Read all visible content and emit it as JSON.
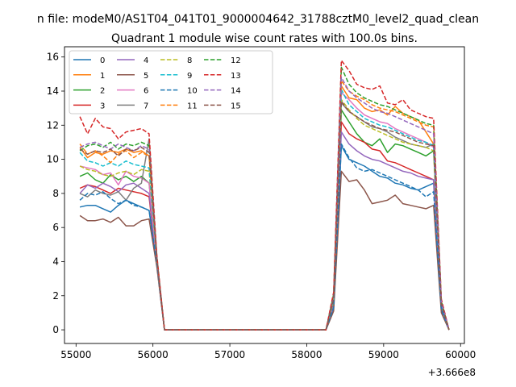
{
  "chart_data": {
    "type": "line",
    "suptitle": "n file: modeM0/AS1T04_041T01_9000004642_31788cztM0_level2_quad_clean",
    "title": "Quadrant 1 module wise count rates with 100.0s bins.",
    "xlabel": "",
    "ylabel": "",
    "x_offset_label": "+3.666e8",
    "xlim": [
      54850,
      60050
    ],
    "ylim": [
      -0.8,
      16.6
    ],
    "x_ticks": [
      55000,
      56000,
      57000,
      58000,
      59000,
      60000
    ],
    "y_ticks": [
      0,
      2,
      4,
      6,
      8,
      10,
      12,
      14,
      16
    ],
    "grid": false,
    "legend_position": "top-left",
    "x": [
      55050,
      55150,
      55250,
      55350,
      55450,
      55550,
      55650,
      55750,
      55850,
      55950,
      56050,
      56150,
      56250,
      56350,
      56450,
      56550,
      56650,
      56750,
      56850,
      56950,
      57050,
      57150,
      57250,
      57350,
      57450,
      57550,
      57650,
      57750,
      57850,
      57950,
      58050,
      58150,
      58250,
      58350,
      58450,
      58550,
      58650,
      58750,
      58850,
      58950,
      59050,
      59150,
      59250,
      59350,
      59450,
      59550,
      59650,
      59750,
      59850
    ],
    "series": [
      {
        "name": "0",
        "color": "#1f77b4",
        "dash": "solid",
        "values": [
          7.2,
          7.3,
          7.3,
          7.1,
          6.9,
          7.3,
          7.6,
          7.4,
          7.2,
          7.0,
          4.0,
          0,
          0,
          0,
          0,
          0,
          0,
          0,
          0,
          0,
          0,
          0,
          0,
          0,
          0,
          0,
          0,
          0,
          0,
          0,
          0,
          0,
          0,
          1.3,
          10.8,
          10.0,
          9.8,
          9.6,
          9.3,
          9.0,
          8.9,
          8.6,
          8.5,
          8.3,
          8.2,
          8.4,
          8.6,
          1.2,
          0
        ]
      },
      {
        "name": "1",
        "color": "#ff7f0e",
        "dash": "solid",
        "values": [
          10.7,
          10.1,
          10.4,
          10.3,
          10.5,
          10.4,
          10.6,
          10.4,
          10.5,
          10.2,
          4.1,
          0,
          0,
          0,
          0,
          0,
          0,
          0,
          0,
          0,
          0,
          0,
          0,
          0,
          0,
          0,
          0,
          0,
          0,
          0,
          0,
          0,
          0,
          1.9,
          14.3,
          13.6,
          13.5,
          13.0,
          12.8,
          12.9,
          12.6,
          13.1,
          12.7,
          12.5,
          12.3,
          11.6,
          10.9,
          1.6,
          0
        ]
      },
      {
        "name": "2",
        "color": "#2ca02c",
        "dash": "solid",
        "values": [
          9.0,
          9.2,
          8.8,
          8.6,
          9.1,
          8.8,
          9.0,
          8.7,
          9.0,
          8.6,
          4.0,
          0,
          0,
          0,
          0,
          0,
          0,
          0,
          0,
          0,
          0,
          0,
          0,
          0,
          0,
          0,
          0,
          0,
          0,
          0,
          0,
          0,
          0,
          1.6,
          12.9,
          12.2,
          11.5,
          11.0,
          10.8,
          11.2,
          10.4,
          10.9,
          10.8,
          10.6,
          10.4,
          10.2,
          10.5,
          1.4,
          0
        ]
      },
      {
        "name": "3",
        "color": "#d62728",
        "dash": "solid",
        "values": [
          8.3,
          8.5,
          8.4,
          8.2,
          8.0,
          8.3,
          8.2,
          8.1,
          8.0,
          7.8,
          3.8,
          0,
          0,
          0,
          0,
          0,
          0,
          0,
          0,
          0,
          0,
          0,
          0,
          0,
          0,
          0,
          0,
          0,
          0,
          0,
          0,
          0,
          0,
          1.5,
          12.2,
          11.5,
          11.2,
          11.0,
          10.6,
          10.5,
          9.9,
          9.8,
          9.6,
          9.4,
          9.2,
          9.0,
          8.8,
          1.3,
          0
        ]
      },
      {
        "name": "4",
        "color": "#9467bd",
        "dash": "solid",
        "values": [
          8.0,
          8.5,
          8.3,
          8.6,
          8.4,
          8.1,
          8.5,
          8.6,
          8.3,
          8.0,
          3.9,
          0,
          0,
          0,
          0,
          0,
          0,
          0,
          0,
          0,
          0,
          0,
          0,
          0,
          0,
          0,
          0,
          0,
          0,
          0,
          0,
          0,
          0,
          1.4,
          11.6,
          10.9,
          10.5,
          10.2,
          10.0,
          9.9,
          9.7,
          9.5,
          9.3,
          9.2,
          9.0,
          8.9,
          8.8,
          1.2,
          0
        ]
      },
      {
        "name": "5",
        "color": "#8c564b",
        "dash": "solid",
        "values": [
          6.7,
          6.4,
          6.4,
          6.5,
          6.3,
          6.6,
          6.1,
          6.1,
          6.4,
          6.5,
          3.7,
          0,
          0,
          0,
          0,
          0,
          0,
          0,
          0,
          0,
          0,
          0,
          0,
          0,
          0,
          0,
          0,
          0,
          0,
          0,
          0,
          0,
          0,
          1.1,
          9.3,
          8.7,
          8.8,
          8.2,
          7.4,
          7.5,
          7.6,
          7.9,
          7.4,
          7.3,
          7.2,
          7.1,
          7.3,
          1.0,
          0
        ]
      },
      {
        "name": "6",
        "color": "#e377c2",
        "dash": "solid",
        "values": [
          9.6,
          9.5,
          9.4,
          9.1,
          9.2,
          8.5,
          9.3,
          9.0,
          8.9,
          8.6,
          4.0,
          0,
          0,
          0,
          0,
          0,
          0,
          0,
          0,
          0,
          0,
          0,
          0,
          0,
          0,
          0,
          0,
          0,
          0,
          0,
          0,
          0,
          0,
          1.8,
          13.9,
          13.5,
          13.0,
          12.6,
          12.4,
          12.2,
          12.1,
          11.8,
          11.6,
          11.4,
          11.2,
          11.0,
          10.7,
          1.5,
          0
        ]
      },
      {
        "name": "7",
        "color": "#7f7f7f",
        "dash": "solid",
        "values": [
          8.0,
          7.8,
          8.2,
          8.0,
          7.9,
          8.1,
          7.6,
          8.3,
          8.6,
          11.2,
          4.2,
          0,
          0,
          0,
          0,
          0,
          0,
          0,
          0,
          0,
          0,
          0,
          0,
          0,
          0,
          0,
          0,
          0,
          0,
          0,
          0,
          0,
          0,
          1.7,
          13.3,
          12.8,
          12.5,
          12.2,
          11.9,
          11.8,
          11.6,
          11.3,
          11.1,
          10.9,
          10.8,
          10.7,
          10.9,
          1.5,
          0
        ]
      },
      {
        "name": "8",
        "color": "#bcbd22",
        "dash": "dashed",
        "values": [
          9.6,
          9.4,
          9.3,
          9.1,
          9.0,
          9.2,
          9.3,
          9.1,
          9.4,
          9.3,
          4.1,
          0,
          0,
          0,
          0,
          0,
          0,
          0,
          0,
          0,
          0,
          0,
          0,
          0,
          0,
          0,
          0,
          0,
          0,
          0,
          0,
          0,
          0,
          1.7,
          13.5,
          12.9,
          12.4,
          12.0,
          11.8,
          11.6,
          11.4,
          11.2,
          11.0,
          10.9,
          10.8,
          10.7,
          10.5,
          1.4,
          0
        ]
      },
      {
        "name": "9",
        "color": "#17becf",
        "dash": "dashed",
        "values": [
          10.4,
          9.9,
          9.8,
          9.6,
          9.8,
          9.6,
          9.9,
          9.7,
          9.6,
          9.5,
          4.1,
          0,
          0,
          0,
          0,
          0,
          0,
          0,
          0,
          0,
          0,
          0,
          0,
          0,
          0,
          0,
          0,
          0,
          0,
          0,
          0,
          0,
          0,
          1.8,
          14.1,
          13.2,
          12.8,
          12.4,
          12.2,
          12.0,
          11.9,
          11.7,
          11.5,
          11.3,
          11.1,
          11.0,
          10.8,
          1.4,
          0
        ]
      },
      {
        "name": "10",
        "color": "#1f77b4",
        "dash": "dashed",
        "values": [
          7.6,
          8.0,
          7.9,
          8.1,
          7.7,
          7.4,
          7.6,
          7.3,
          7.2,
          7.0,
          3.9,
          0,
          0,
          0,
          0,
          0,
          0,
          0,
          0,
          0,
          0,
          0,
          0,
          0,
          0,
          0,
          0,
          0,
          0,
          0,
          0,
          0,
          0,
          1.3,
          10.9,
          10.1,
          9.5,
          9.3,
          9.4,
          9.2,
          9.0,
          8.8,
          8.6,
          8.4,
          8.2,
          7.8,
          8.1,
          1.2,
          0
        ]
      },
      {
        "name": "11",
        "color": "#ff7f0e",
        "dash": "dashed",
        "values": [
          10.9,
          10.3,
          10.5,
          10.2,
          9.8,
          10.3,
          10.5,
          10.1,
          10.4,
          10.2,
          4.2,
          0,
          0,
          0,
          0,
          0,
          0,
          0,
          0,
          0,
          0,
          0,
          0,
          0,
          0,
          0,
          0,
          0,
          0,
          0,
          0,
          0,
          0,
          2.0,
          14.6,
          14.0,
          13.7,
          13.5,
          13.2,
          13.0,
          12.9,
          12.8,
          12.6,
          12.4,
          12.2,
          12.0,
          11.9,
          1.6,
          0
        ]
      },
      {
        "name": "12",
        "color": "#2ca02c",
        "dash": "dashed",
        "values": [
          10.5,
          10.8,
          10.9,
          10.7,
          11.0,
          10.6,
          10.9,
          10.8,
          11.0,
          10.8,
          4.3,
          0,
          0,
          0,
          0,
          0,
          0,
          0,
          0,
          0,
          0,
          0,
          0,
          0,
          0,
          0,
          0,
          0,
          0,
          0,
          0,
          0,
          0,
          2.1,
          15.4,
          14.4,
          13.9,
          13.6,
          13.4,
          13.2,
          13.1,
          12.9,
          12.7,
          12.5,
          12.3,
          12.1,
          12.0,
          1.7,
          0
        ]
      },
      {
        "name": "13",
        "color": "#d62728",
        "dash": "dashed",
        "values": [
          12.5,
          11.5,
          12.4,
          11.9,
          11.8,
          11.2,
          11.6,
          11.7,
          11.8,
          11.5,
          4.4,
          0,
          0,
          0,
          0,
          0,
          0,
          0,
          0,
          0,
          0,
          0,
          0,
          0,
          0,
          0,
          0,
          0,
          0,
          0,
          0,
          0,
          0,
          2.2,
          15.8,
          15.2,
          14.4,
          14.2,
          14.1,
          14.3,
          13.3,
          13.2,
          13.5,
          12.9,
          12.7,
          12.5,
          12.4,
          1.8,
          0
        ]
      },
      {
        "name": "14",
        "color": "#9467bd",
        "dash": "dashed",
        "values": [
          10.7,
          10.9,
          11.0,
          10.8,
          10.6,
          10.9,
          10.7,
          10.5,
          10.8,
          10.6,
          4.2,
          0,
          0,
          0,
          0,
          0,
          0,
          0,
          0,
          0,
          0,
          0,
          0,
          0,
          0,
          0,
          0,
          0,
          0,
          0,
          0,
          0,
          0,
          1.9,
          14.8,
          14.0,
          13.6,
          13.3,
          13.0,
          12.8,
          12.7,
          12.5,
          12.3,
          12.1,
          11.9,
          11.7,
          11.5,
          1.6,
          0
        ]
      },
      {
        "name": "15",
        "color": "#8c564b",
        "dash": "dashed",
        "values": [
          10.6,
          10.3,
          10.5,
          10.4,
          10.6,
          10.2,
          10.6,
          10.5,
          10.7,
          10.4,
          4.2,
          0,
          0,
          0,
          0,
          0,
          0,
          0,
          0,
          0,
          0,
          0,
          0,
          0,
          0,
          0,
          0,
          0,
          0,
          0,
          0,
          0,
          0,
          1.8,
          13.4,
          12.8,
          12.5,
          12.2,
          12.0,
          11.8,
          11.7,
          11.6,
          11.4,
          11.2,
          11.0,
          10.9,
          10.8,
          1.5,
          0
        ]
      }
    ]
  }
}
